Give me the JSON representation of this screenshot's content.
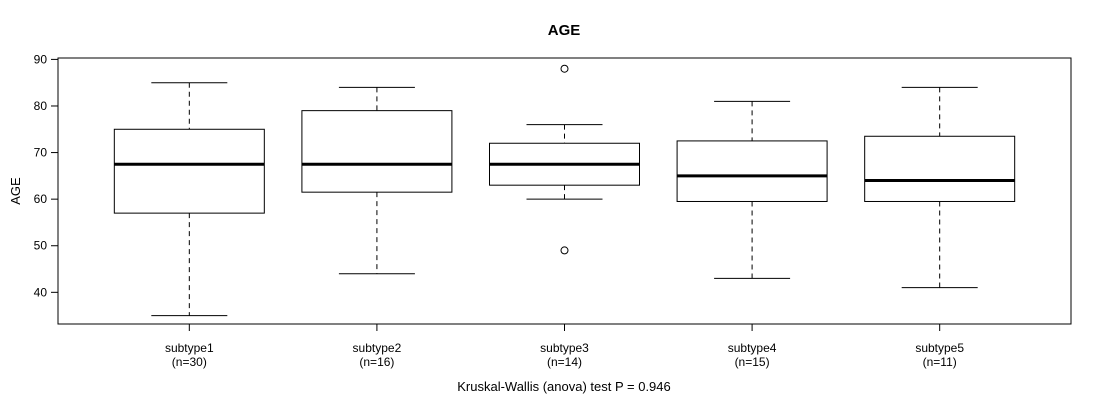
{
  "chart_data": {
    "type": "boxplot",
    "title": "AGE",
    "ylabel": "AGE",
    "caption": "Kruskal-Wallis (anova) test P = 0.946",
    "ylim": [
      33.2,
      90.3
    ],
    "yticks": [
      40,
      50,
      60,
      70,
      80,
      90
    ],
    "grid": false,
    "groups": [
      {
        "label": "subtype1",
        "n_label": "(n=30)",
        "whisker_low": 35,
        "q1": 57,
        "median": 67.5,
        "q3": 75,
        "whisker_high": 85,
        "outliers": []
      },
      {
        "label": "subtype2",
        "n_label": "(n=16)",
        "whisker_low": 44,
        "q1": 61.5,
        "median": 67.5,
        "q3": 79,
        "whisker_high": 84,
        "outliers": []
      },
      {
        "label": "subtype3",
        "n_label": "(n=14)",
        "whisker_low": 60,
        "q1": 63,
        "median": 67.5,
        "q3": 72,
        "whisker_high": 76,
        "outliers": [
          88,
          49
        ]
      },
      {
        "label": "subtype4",
        "n_label": "(n=15)",
        "whisker_low": 43,
        "q1": 59.5,
        "median": 65,
        "q3": 72.5,
        "whisker_high": 81,
        "outliers": []
      },
      {
        "label": "subtype5",
        "n_label": "(n=11)",
        "whisker_low": 41,
        "q1": 59.5,
        "median": 64,
        "q3": 73.5,
        "whisker_high": 84,
        "outliers": []
      }
    ],
    "style": {
      "box_fill": "#ffffff",
      "line_color": "#000000",
      "median_color": "#000000",
      "median_stroke_width": 3,
      "whisker_dash": "5,4",
      "outlier_radius": 3.5
    }
  }
}
